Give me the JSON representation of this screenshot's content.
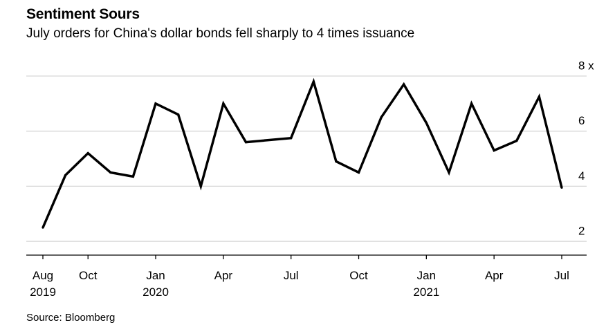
{
  "header": {
    "title": "Sentiment Sours",
    "subtitle": "July orders for China's dollar bonds fell sharply to 4 times issuance"
  },
  "footer": {
    "source": "Source: Bloomberg"
  },
  "chart_data": {
    "type": "line",
    "title": "Sentiment Sours",
    "subtitle": "July orders for China's dollar bonds fell sharply to 4 times issuance",
    "xlabel": "",
    "ylabel": "",
    "ylim": [
      1.5,
      8
    ],
    "y_ticks": [
      {
        "value": 2,
        "label": "2"
      },
      {
        "value": 4,
        "label": "4"
      },
      {
        "value": 6,
        "label": "6"
      },
      {
        "value": 8,
        "label": "8 x"
      }
    ],
    "x_ticks": [
      {
        "month": "2019-08",
        "label": "Aug",
        "year": "2019"
      },
      {
        "month": "2019-10",
        "label": "Oct",
        "year": ""
      },
      {
        "month": "2020-01",
        "label": "Jan",
        "year": "2020"
      },
      {
        "month": "2020-04",
        "label": "Apr",
        "year": ""
      },
      {
        "month": "2020-07",
        "label": "Jul",
        "year": ""
      },
      {
        "month": "2020-10",
        "label": "Oct",
        "year": ""
      },
      {
        "month": "2021-01",
        "label": "Jan",
        "year": "2021"
      },
      {
        "month": "2021-04",
        "label": "Apr",
        "year": ""
      },
      {
        "month": "2021-07",
        "label": "Jul",
        "year": ""
      }
    ],
    "grid": true,
    "color": "#000000",
    "series": [
      {
        "x": [
          "2019-08",
          "2019-09",
          "2019-10",
          "2019-11",
          "2019-12",
          "2020-01",
          "2020-02",
          "2020-03",
          "2020-04",
          "2020-05",
          "2020-07",
          "2020-08",
          "2020-09",
          "2020-10",
          "2020-11",
          "2020-12",
          "2021-01",
          "2021-02",
          "2021-03",
          "2021-04",
          "2021-05",
          "2021-06",
          "2021-07"
        ],
        "y": [
          2.5,
          4.4,
          5.2,
          4.5,
          4.35,
          7.0,
          6.6,
          4.0,
          7.0,
          5.6,
          5.75,
          7.8,
          4.9,
          4.5,
          6.5,
          7.7,
          6.3,
          4.5,
          7.0,
          5.3,
          5.65,
          7.25,
          3.95
        ]
      }
    ]
  }
}
